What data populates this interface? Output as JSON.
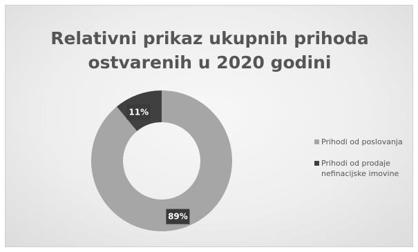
{
  "chart_data": {
    "type": "pie",
    "title": "Relativni prikaz ukupnih prihoda ostvarenih u 2020 godini",
    "categories": [
      "Prihodi od poslovanja",
      "Prihodi od prodaje nefinacijske imovine"
    ],
    "values": [
      89,
      11
    ],
    "data_labels": [
      "89%",
      "11%"
    ],
    "colors": [
      "#a6a6a6",
      "#404040"
    ],
    "legend_position": "right"
  }
}
